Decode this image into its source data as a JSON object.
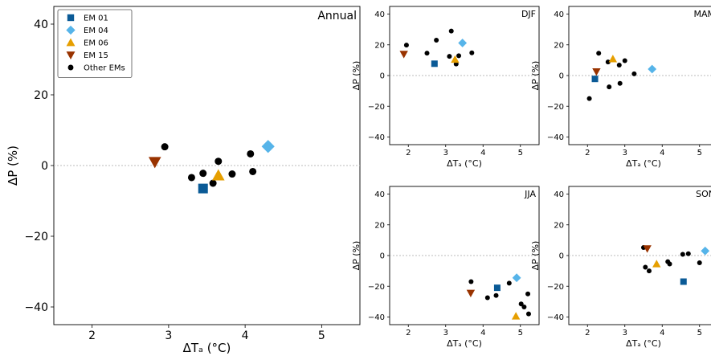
{
  "colors": {
    "em01": "#0a5a96",
    "em04": "#56b4e9",
    "em06": "#e69f00",
    "em15": "#993300",
    "other": "#000000",
    "zero_line": "#bbbbbb"
  },
  "legend": {
    "position": "upper-left of Annual panel",
    "entries": [
      {
        "key": "em01",
        "label": "EM 01",
        "marker": "square"
      },
      {
        "key": "em04",
        "label": "EM 04",
        "marker": "diamond"
      },
      {
        "key": "em06",
        "label": "EM 06",
        "marker": "triangle-up"
      },
      {
        "key": "em15",
        "label": "EM 15",
        "marker": "triangle-down"
      },
      {
        "key": "other",
        "label": "Other EMs",
        "marker": "circle"
      }
    ]
  },
  "chart_data": [
    {
      "type": "scatter",
      "title": "Annual",
      "xlabel": "ΔTₐ (°C)",
      "ylabel": "ΔP (%)",
      "xlim": [
        1.5,
        5.5
      ],
      "ylim": [
        -45,
        45
      ],
      "xticks": [
        "2",
        "3",
        "4",
        "5"
      ],
      "yticks": [
        "−40",
        "−20",
        "0",
        "20",
        "40"
      ],
      "grid": false,
      "zero_line": true,
      "highlighted": [
        {
          "key": "em01",
          "x": 3.45,
          "y": -6.5
        },
        {
          "key": "em04",
          "x": 4.3,
          "y": 5.4
        },
        {
          "key": "em06",
          "x": 3.65,
          "y": -2.8
        },
        {
          "key": "em15",
          "x": 2.82,
          "y": 1.0
        }
      ],
      "other_points": [
        [
          2.95,
          5.3
        ],
        [
          3.3,
          -3.4
        ],
        [
          3.45,
          -2.2
        ],
        [
          3.58,
          -5.0
        ],
        [
          3.65,
          1.2
        ],
        [
          3.83,
          -2.4
        ],
        [
          4.07,
          3.3
        ],
        [
          4.1,
          -1.7
        ]
      ]
    },
    {
      "type": "scatter",
      "title": "DJF",
      "xlabel": "ΔTₐ (°C)",
      "ylabel": "ΔP (%)",
      "xlim": [
        1.5,
        5.5
      ],
      "ylim": [
        -45,
        45
      ],
      "xticks": [
        "2",
        "3",
        "4",
        "5"
      ],
      "yticks": [
        "−40",
        "−20",
        "0",
        "20",
        "40"
      ],
      "grid": false,
      "zero_line": true,
      "highlighted": [
        {
          "key": "em01",
          "x": 2.7,
          "y": 7.7
        },
        {
          "key": "em04",
          "x": 3.45,
          "y": 21.2
        },
        {
          "key": "em06",
          "x": 3.25,
          "y": 10.5
        },
        {
          "key": "em15",
          "x": 1.88,
          "y": 13.9
        }
      ],
      "other_points": [
        [
          1.95,
          19.8
        ],
        [
          2.5,
          14.6
        ],
        [
          2.75,
          23.0
        ],
        [
          3.1,
          12.5
        ],
        [
          3.15,
          29.0
        ],
        [
          3.28,
          7.5
        ],
        [
          3.35,
          12.9
        ],
        [
          3.7,
          14.8
        ]
      ]
    },
    {
      "type": "scatter",
      "title": "MAM",
      "xlabel": "ΔTₐ (°C)",
      "ylabel": "ΔP (%)",
      "xlim": [
        1.5,
        5.5
      ],
      "ylim": [
        -45,
        45
      ],
      "xticks": [
        "2",
        "3",
        "4",
        "5"
      ],
      "yticks": [
        "−40",
        "−20",
        "0",
        "20",
        "40"
      ],
      "grid": false,
      "zero_line": true,
      "highlighted": [
        {
          "key": "em01",
          "x": 2.2,
          "y": -2.2
        },
        {
          "key": "em04",
          "x": 3.73,
          "y": 4.2
        },
        {
          "key": "em06",
          "x": 2.68,
          "y": 10.8
        },
        {
          "key": "em15",
          "x": 2.24,
          "y": 2.5
        }
      ],
      "other_points": [
        [
          2.05,
          -15.0
        ],
        [
          2.3,
          14.5
        ],
        [
          2.55,
          8.8
        ],
        [
          2.58,
          -7.4
        ],
        [
          2.85,
          6.8
        ],
        [
          2.87,
          -5.1
        ],
        [
          3.0,
          9.7
        ],
        [
          3.25,
          1.1
        ]
      ]
    },
    {
      "type": "scatter",
      "title": "JJA",
      "xlabel": "ΔTₐ (°C)",
      "ylabel": "ΔP (%)",
      "xlim": [
        1.5,
        5.5
      ],
      "ylim": [
        -45,
        45
      ],
      "xticks": [
        "2",
        "3",
        "4",
        "5"
      ],
      "yticks": [
        "−40",
        "−20",
        "0",
        "20",
        "40"
      ],
      "grid": false,
      "zero_line": true,
      "highlighted": [
        {
          "key": "em01",
          "x": 4.38,
          "y": -21.0
        },
        {
          "key": "em04",
          "x": 4.9,
          "y": -14.5
        },
        {
          "key": "em06",
          "x": 4.88,
          "y": -39.5
        },
        {
          "key": "em15",
          "x": 3.67,
          "y": -24.5
        }
      ],
      "other_points": [
        [
          3.68,
          -17.0
        ],
        [
          4.12,
          -27.5
        ],
        [
          4.35,
          -26.0
        ],
        [
          4.7,
          -18.0
        ],
        [
          5.02,
          -31.5
        ],
        [
          5.1,
          -33.5
        ],
        [
          5.2,
          -25.0
        ],
        [
          5.22,
          -38.0
        ]
      ]
    },
    {
      "type": "scatter",
      "title": "SON",
      "xlabel": "ΔTₐ (°C)",
      "ylabel": "ΔP (%)",
      "xlim": [
        1.5,
        5.5
      ],
      "ylim": [
        -45,
        45
      ],
      "xticks": [
        "2",
        "3",
        "4",
        "5"
      ],
      "yticks": [
        "−40",
        "−20",
        "0",
        "20",
        "40"
      ],
      "grid": false,
      "zero_line": true,
      "highlighted": [
        {
          "key": "em01",
          "x": 4.57,
          "y": -17.0
        },
        {
          "key": "em04",
          "x": 5.15,
          "y": 3.0
        },
        {
          "key": "em06",
          "x": 3.85,
          "y": -5.5
        },
        {
          "key": "em15",
          "x": 3.6,
          "y": 4.5
        }
      ],
      "other_points": [
        [
          3.5,
          5.2
        ],
        [
          3.55,
          -7.6
        ],
        [
          3.65,
          -10.0
        ],
        [
          4.15,
          -4.0
        ],
        [
          4.2,
          -5.5
        ],
        [
          4.55,
          0.8
        ],
        [
          4.7,
          1.2
        ],
        [
          5.0,
          -4.7
        ]
      ]
    }
  ]
}
